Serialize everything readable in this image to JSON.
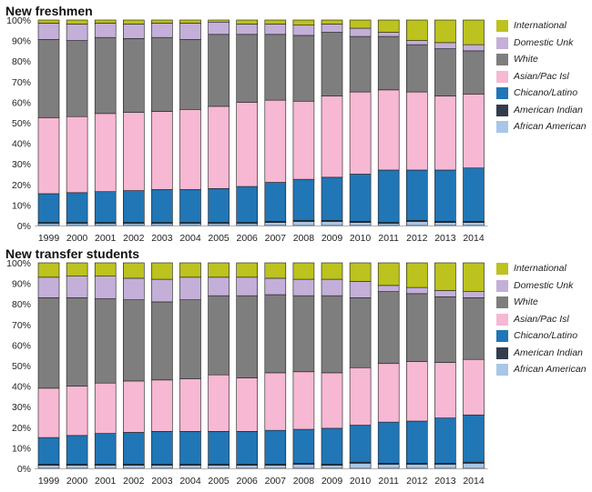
{
  "colors": {
    "International": "#bcc21e",
    "Domestic Unk": "#c3afd8",
    "White": "#7e7e7e",
    "Asian/Pac Isl": "#f6b8d3",
    "Chicano/Latino": "#2176b6",
    "American Indian": "#333c4c",
    "African American": "#a8c6e8"
  },
  "chart_data": [
    {
      "type": "bar",
      "stacked": true,
      "title": "New freshmen",
      "categories": [
        "1999",
        "2000",
        "2001",
        "2002",
        "2003",
        "2004",
        "2005",
        "2006",
        "2007",
        "2008",
        "2009",
        "2010",
        "2011",
        "2012",
        "2013",
        "2014"
      ],
      "ylim": [
        0,
        100
      ],
      "yticks": [
        "0%",
        "10%",
        "20%",
        "30%",
        "40%",
        "50%",
        "60%",
        "70%",
        "80%",
        "90%",
        "100%"
      ],
      "legend": [
        "International",
        "Domestic Unk",
        "White",
        "Asian/Pac Isl",
        "Chicano/Latino",
        "American Indian",
        "African American"
      ],
      "legend_position": "right",
      "series": [
        {
          "name": "African American",
          "values": [
            1,
            1,
            1,
            1,
            1,
            1,
            1,
            1,
            1.5,
            2,
            2,
            1.5,
            1,
            2,
            1.5,
            1.5
          ]
        },
        {
          "name": "American Indian",
          "values": [
            0.5,
            0.5,
            0.5,
            0.5,
            0.5,
            0.5,
            0.5,
            0.5,
            0.5,
            0.5,
            0.5,
            0.5,
            0.5,
            0.5,
            0.5,
            0.5
          ]
        },
        {
          "name": "Chicano/Latino",
          "values": [
            14,
            14.5,
            15,
            15.5,
            16,
            16,
            16.5,
            17.5,
            19,
            20,
            21,
            23,
            25.5,
            24.5,
            25,
            26
          ]
        },
        {
          "name": "Asian/Pac Isl",
          "values": [
            37,
            37,
            38,
            38,
            38,
            39,
            40,
            41,
            40,
            38,
            39.5,
            40,
            39,
            38,
            36,
            36
          ]
        },
        {
          "name": "White",
          "values": [
            38,
            37,
            37,
            36,
            36,
            34,
            35,
            33,
            32,
            32,
            31,
            27,
            26,
            23,
            23,
            21
          ]
        },
        {
          "name": "Domestic Unk",
          "values": [
            8,
            8,
            7,
            7,
            7,
            8,
            6,
            5,
            5,
            5,
            4,
            4,
            2,
            2,
            3,
            3
          ]
        },
        {
          "name": "International",
          "values": [
            1.5,
            2,
            1.5,
            2,
            1.5,
            1.5,
            1,
            2,
            2,
            2.5,
            2,
            4,
            6,
            10,
            11,
            12
          ]
        }
      ]
    },
    {
      "type": "bar",
      "stacked": true,
      "title": "New transfer students",
      "categories": [
        "1999",
        "2000",
        "2001",
        "2002",
        "2003",
        "2004",
        "2005",
        "2006",
        "2007",
        "2008",
        "2009",
        "2010",
        "2011",
        "2012",
        "2013",
        "2014"
      ],
      "ylim": [
        0,
        100
      ],
      "yticks": [
        "0%",
        "10%",
        "20%",
        "30%",
        "40%",
        "50%",
        "60%",
        "70%",
        "80%",
        "90%",
        "100%"
      ],
      "legend": [
        "International",
        "Domestic Unk",
        "White",
        "Asian/Pac Isl",
        "Chicano/Latino",
        "American Indian",
        "African American"
      ],
      "legend_position": "right",
      "series": [
        {
          "name": "African American",
          "values": [
            1.5,
            1.5,
            1.5,
            1.5,
            1.5,
            1.5,
            1.5,
            1.5,
            1.5,
            2,
            1.5,
            2.5,
            2,
            2,
            2,
            2.5
          ]
        },
        {
          "name": "American Indian",
          "values": [
            0.5,
            0.5,
            0.5,
            0.5,
            0.5,
            0.5,
            0.5,
            0.5,
            0.5,
            0.5,
            0.5,
            0.5,
            0.5,
            0.5,
            0.5,
            0.5
          ]
        },
        {
          "name": "Chicano/Latino",
          "values": [
            13,
            14,
            15,
            15.5,
            16,
            16,
            16,
            16,
            16.5,
            16.5,
            17.5,
            18,
            20,
            20.5,
            22,
            23
          ]
        },
        {
          "name": "Asian/Pac Isl",
          "values": [
            24,
            24,
            24.5,
            25,
            25,
            25.5,
            27.5,
            26,
            28,
            28,
            27,
            28,
            28.5,
            29,
            27,
            27
          ]
        },
        {
          "name": "White",
          "values": [
            44,
            43,
            41,
            39.5,
            38,
            38.5,
            38.5,
            40,
            38,
            37,
            37.5,
            34,
            35,
            33,
            32,
            30
          ]
        },
        {
          "name": "Domestic Unk",
          "values": [
            10,
            10.5,
            11,
            10.5,
            11,
            11,
            9,
            9,
            8,
            8,
            8,
            8,
            3,
            3,
            3,
            3
          ]
        },
        {
          "name": "International",
          "values": [
            7,
            6.5,
            6.5,
            7.5,
            8,
            7,
            7,
            7,
            7.5,
            8,
            8,
            9,
            11,
            12,
            13.5,
            14
          ]
        }
      ]
    }
  ]
}
